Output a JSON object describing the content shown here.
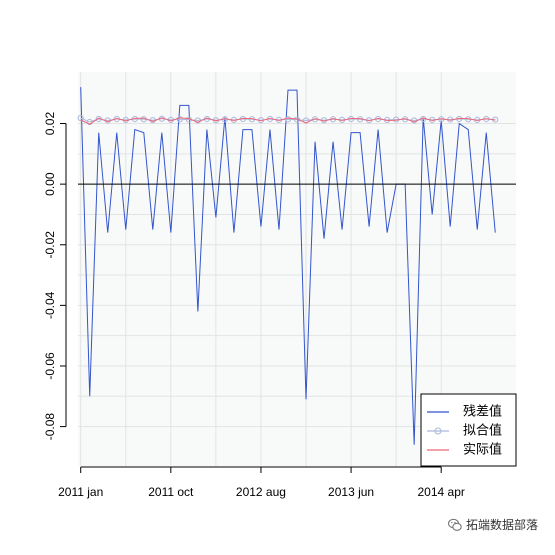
{
  "chart_data": {
    "type": "line",
    "title": "",
    "xlabel": "",
    "ylabel": "",
    "x_tick_labels": [
      "2011 jan",
      "2011 oct",
      "2012 aug",
      "2013 jun",
      "2014 apr"
    ],
    "x_tick_values": [
      0,
      10,
      20,
      30,
      40
    ],
    "y_ticks": [
      0.02,
      0.0,
      -0.02,
      -0.04,
      -0.06,
      -0.08
    ],
    "y_tick_labels": [
      "0.02",
      "0.00",
      "-0.02",
      "-0.04",
      "-0.06",
      "-0.08"
    ],
    "xlim": [
      -0.3,
      48.3
    ],
    "ylim": [
      -0.093,
      0.037
    ],
    "grid": true,
    "zero_line": 0,
    "legend_position": "bottom-right",
    "series": [
      {
        "name": "残差值",
        "color": "#3355cc",
        "marker": "none",
        "values": [
          0.032,
          -0.07,
          0.017,
          -0.016,
          0.017,
          -0.015,
          0.018,
          0.017,
          -0.015,
          0.017,
          -0.016,
          0.026,
          0.026,
          -0.042,
          0.018,
          -0.011,
          0.022,
          -0.016,
          0.018,
          0.018,
          -0.014,
          0.018,
          -0.015,
          0.031,
          0.031,
          -0.071,
          0.014,
          -0.018,
          0.014,
          -0.015,
          0.017,
          0.017,
          -0.014,
          0.018,
          -0.016,
          0.0,
          0.0,
          -0.086,
          0.022,
          -0.01,
          0.021,
          -0.014,
          0.02,
          0.018,
          -0.015,
          0.017,
          -0.016
        ]
      },
      {
        "name": "拟合值",
        "color": "#aab8dd",
        "marker": "circle",
        "values": [
          0.0218,
          0.0205,
          0.0215,
          0.021,
          0.0215,
          0.0212,
          0.0215,
          0.0214,
          0.0211,
          0.0216,
          0.0212,
          0.0214,
          0.0213,
          0.021,
          0.0215,
          0.0211,
          0.0214,
          0.0212,
          0.0215,
          0.0214,
          0.0211,
          0.0215,
          0.0212,
          0.0214,
          0.0213,
          0.021,
          0.0214,
          0.0211,
          0.0214,
          0.0212,
          0.0215,
          0.0214,
          0.0211,
          0.0215,
          0.0212,
          0.0213,
          0.0214,
          0.021,
          0.0215,
          0.0212,
          0.0214,
          0.0213,
          0.0215,
          0.0214,
          0.0212,
          0.0215,
          0.0213
        ]
      },
      {
        "name": "实际值",
        "color": "#ee6677",
        "marker": "none",
        "values": [
          0.0212,
          0.0198,
          0.0218,
          0.0206,
          0.0217,
          0.0209,
          0.0217,
          0.0218,
          0.0207,
          0.0219,
          0.0209,
          0.0219,
          0.0216,
          0.0204,
          0.0218,
          0.0209,
          0.0216,
          0.021,
          0.0217,
          0.0216,
          0.0209,
          0.0217,
          0.021,
          0.0218,
          0.0215,
          0.0202,
          0.0216,
          0.0208,
          0.0216,
          0.021,
          0.0217,
          0.0216,
          0.0209,
          0.0217,
          0.021,
          0.0211,
          0.0216,
          0.0205,
          0.0218,
          0.021,
          0.0216,
          0.0211,
          0.0217,
          0.0216,
          0.021,
          0.0216,
          0.0211
        ]
      }
    ]
  },
  "watermark": {
    "text": "拓端数据部落",
    "icon": "wechat-icon"
  }
}
